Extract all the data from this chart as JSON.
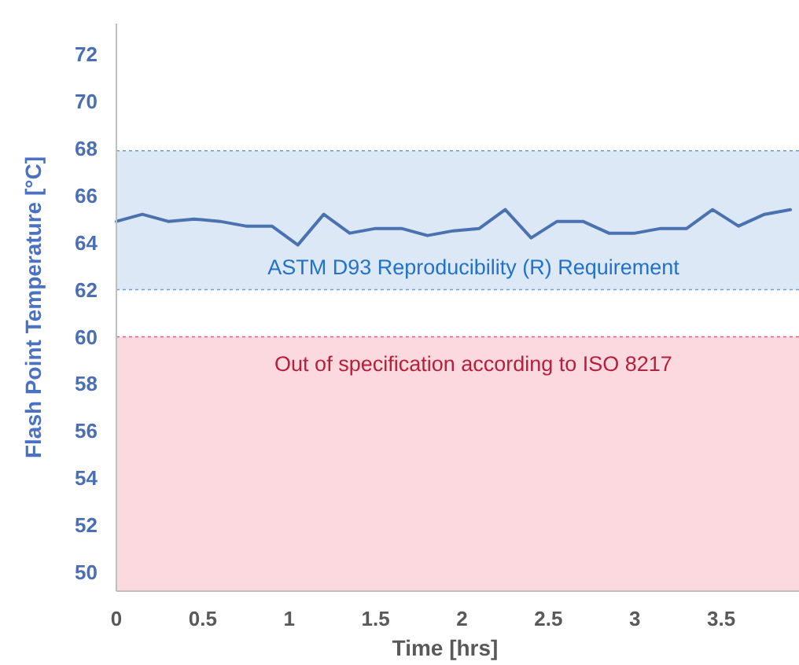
{
  "chart_data": {
    "type": "line",
    "xlabel": "Time [hrs]",
    "ylabel": "Flash Point Temperature [°C]",
    "x": [
      0,
      0.15,
      0.3,
      0.45,
      0.6,
      0.75,
      0.9,
      1.05,
      1.2,
      1.35,
      1.5,
      1.65,
      1.8,
      1.95,
      2.1,
      2.25,
      2.4,
      2.55,
      2.7,
      2.85,
      3,
      3.15,
      3.3,
      3.45,
      3.6,
      3.75,
      3.9
    ],
    "series": [
      {
        "color": "#4a72b0",
        "values": [
          64.9,
          65.2,
          64.9,
          65.0,
          64.9,
          64.7,
          64.7,
          63.9,
          65.2,
          64.4,
          64.6,
          64.6,
          64.3,
          64.5,
          64.6,
          65.4,
          64.2,
          64.9,
          64.9,
          64.4,
          64.4,
          64.6,
          64.6,
          65.4,
          64.7,
          65.2,
          65.4
        ]
      }
    ],
    "xlim": [
      0,
      3.95
    ],
    "xticks": [
      0,
      0.5,
      1,
      1.5,
      2,
      2.5,
      3,
      3.5
    ],
    "ylim": [
      49.2,
      73.3
    ],
    "yticks": [
      50,
      52,
      54,
      56,
      58,
      60,
      62,
      64,
      66,
      68,
      70,
      72
    ],
    "bands": [
      {
        "axis": "y",
        "from": 62,
        "to": 67.9,
        "label": "ASTM D93 Reproducibility (R) Requirement",
        "color": "#dce8f5"
      },
      {
        "axis": "y",
        "from": 49.2,
        "to": 60,
        "label": "Out of specification according to ISO 8217",
        "color": "#fbd9df"
      }
    ],
    "ref_lines": [
      {
        "axis": "y",
        "value": 67.9,
        "color": "#6a9fd8",
        "line_style": "dotted"
      },
      {
        "axis": "y",
        "value": 62,
        "color": "#6a9fd8",
        "line_style": "dotted"
      },
      {
        "axis": "y",
        "value": 60,
        "color": "#e0607a",
        "line_style": "dotted"
      }
    ],
    "marker": "none",
    "line_style": "solid"
  }
}
